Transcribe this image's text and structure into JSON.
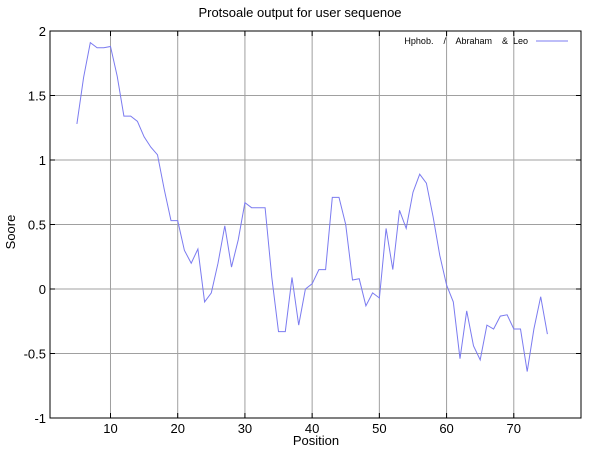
{
  "chart_data": {
    "type": "line",
    "title": "Protsoale output for user sequenoe",
    "xlabel": "Position",
    "ylabel": "Soore",
    "xlim": [
      1,
      80
    ],
    "ylim": [
      -1,
      2
    ],
    "xticks": [
      10,
      20,
      30,
      40,
      50,
      60,
      70
    ],
    "yticks": [
      -1,
      -0.5,
      0,
      0.5,
      1,
      1.5,
      2
    ],
    "ytick_labels": [
      "-1",
      "-0.5",
      "0",
      "0.5",
      "1",
      "1.5",
      "2"
    ],
    "grid": true,
    "legend": {
      "placement": "top-right",
      "entries": [
        "Hphob.    /    Abraham    &  Leo"
      ]
    },
    "series": [
      {
        "name": "Hphob.    /    Abraham    &  Leo",
        "color": "#7b7bf0",
        "x": [
          5,
          6,
          7,
          8,
          9,
          10,
          11,
          12,
          13,
          14,
          15,
          16,
          17,
          18,
          19,
          20,
          21,
          22,
          23,
          24,
          25,
          26,
          27,
          28,
          29,
          30,
          31,
          32,
          33,
          34,
          35,
          36,
          37,
          38,
          39,
          40,
          41,
          42,
          43,
          44,
          45,
          46,
          47,
          48,
          49,
          50,
          51,
          52,
          53,
          54,
          55,
          56,
          57,
          58,
          59,
          60,
          61,
          62,
          63,
          64,
          65,
          66,
          67,
          68,
          69,
          70,
          71,
          72,
          73,
          74,
          75
        ],
        "values": [
          1.28,
          1.64,
          1.91,
          1.87,
          1.87,
          1.88,
          1.65,
          1.34,
          1.34,
          1.3,
          1.18,
          1.1,
          1.04,
          0.77,
          0.53,
          0.53,
          0.3,
          0.2,
          0.31,
          -0.1,
          -0.03,
          0.2,
          0.49,
          0.17,
          0.38,
          0.67,
          0.63,
          0.63,
          0.63,
          0.09,
          -0.33,
          -0.33,
          0.09,
          -0.28,
          0.0,
          0.04,
          0.15,
          0.15,
          0.71,
          0.71,
          0.5,
          0.07,
          0.08,
          -0.13,
          -0.03,
          -0.07,
          0.47,
          0.15,
          0.61,
          0.47,
          0.75,
          0.89,
          0.82,
          0.56,
          0.26,
          0.03,
          -0.1,
          -0.54,
          -0.17,
          -0.44,
          -0.55,
          -0.28,
          -0.31,
          -0.21,
          -0.2,
          -0.31,
          -0.31,
          -0.64,
          -0.31,
          -0.06,
          -0.35
        ]
      }
    ]
  }
}
